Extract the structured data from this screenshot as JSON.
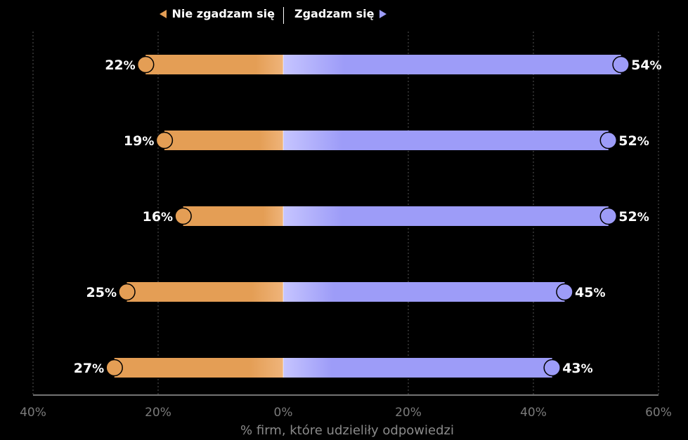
{
  "legend": {
    "left_label": "Nie zgadzam się",
    "right_label": "Zgadzam się"
  },
  "colors": {
    "disagree": "#e49e55",
    "agree": "#9d9cf8",
    "background": "#000000",
    "grid": "#555555"
  },
  "chart_data": {
    "type": "bar",
    "orientation": "horizontal-diverging",
    "xlabel": "% firm, które udzieliły odpowiedzi",
    "xlim": [
      -40,
      60
    ],
    "xticks": [
      -40,
      -20,
      0,
      20,
      40,
      60
    ],
    "xtick_labels": [
      "40%",
      "20%",
      "0%",
      "20%",
      "40%",
      "60%"
    ],
    "grid": "vertical dotted",
    "series": [
      {
        "name": "Nie zgadzam się",
        "values": [
          22,
          19,
          16,
          25,
          27
        ]
      },
      {
        "name": "Zgadzam się",
        "values": [
          54,
          52,
          52,
          45,
          43
        ]
      }
    ],
    "value_suffix": "%"
  }
}
